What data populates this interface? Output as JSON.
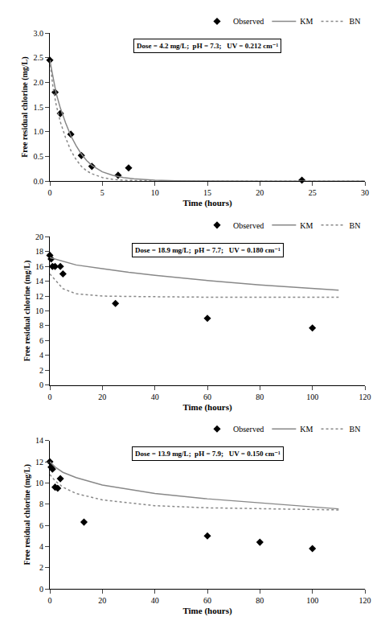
{
  "chart_data": [
    {
      "type": "line",
      "annotations": [
        "Dose = 4.2 mg/L;  pH = 7.3;   UV = 0.212 cm⁻¹"
      ],
      "xlabel": "Time (hours)",
      "ylabel": "Free residual chlorine (mg/L)",
      "xlim": [
        0,
        30
      ],
      "xticks": [
        0,
        5,
        10,
        15,
        20,
        25,
        30
      ],
      "ylim": [
        0,
        3.0
      ],
      "yticks": [
        {
          "value": 0.0,
          "label": "0.0"
        },
        0.5,
        {
          "value": 1.0,
          "label": "1.0"
        },
        1.5,
        {
          "value": 2.0,
          "label": "2.0"
        },
        2.5,
        {
          "value": 3.0,
          "label": "3.0"
        }
      ],
      "grid": false,
      "legend": "upper right",
      "series": [
        {
          "name": "Observed",
          "type": "scatter",
          "marker": "diamond",
          "color": "#000000",
          "x": [
            0,
            0.5,
            1,
            2,
            3,
            4,
            6.5,
            7.5,
            24
          ],
          "values": [
            2.45,
            1.8,
            1.37,
            0.95,
            0.52,
            0.3,
            0.12,
            0.27,
            0.02
          ]
        },
        {
          "name": "KM",
          "type": "line",
          "line_style": "solid",
          "color": "#888888",
          "x": [
            0,
            0.3,
            0.6,
            1,
            1.5,
            2,
            2.5,
            3,
            3.5,
            4,
            5,
            6,
            7,
            8,
            10,
            12,
            15,
            20,
            24,
            30
          ],
          "values": [
            2.45,
            2.1,
            1.78,
            1.48,
            1.18,
            0.92,
            0.72,
            0.55,
            0.42,
            0.32,
            0.19,
            0.12,
            0.075,
            0.048,
            0.02,
            0.009,
            0.003,
            0.001,
            0.0003,
            0.0001
          ]
        },
        {
          "name": "BN",
          "type": "line",
          "line_style": "dotted",
          "color": "#888888",
          "x": [
            0,
            0.3,
            0.6,
            1,
            1.5,
            2,
            2.5,
            3,
            3.5,
            4,
            5,
            6,
            7,
            8,
            10,
            12,
            15,
            20,
            24,
            30
          ],
          "values": [
            2.45,
            1.9,
            1.55,
            1.2,
            0.88,
            0.62,
            0.44,
            0.3,
            0.21,
            0.15,
            0.075,
            0.038,
            0.02,
            0.011,
            0.004,
            0.002,
            0.0007,
            0.0002,
            7e-05,
            2e-05
          ]
        }
      ]
    },
    {
      "type": "line",
      "annotations": [
        "Dose = 18.9 mg/L;  pH = 7.7;   UV = 0.180 cm⁻¹"
      ],
      "xlabel": "Time (hours)",
      "ylabel": "Free residual chlorine (mg/L)",
      "xlim": [
        0,
        120
      ],
      "xticks": [
        0,
        20,
        40,
        60,
        80,
        100,
        120
      ],
      "ylim": [
        0,
        20
      ],
      "yticks": [
        0,
        2,
        4,
        6,
        8,
        10,
        12,
        14,
        16,
        18,
        20
      ],
      "grid": false,
      "legend": "upper right",
      "series": [
        {
          "name": "Observed",
          "type": "scatter",
          "marker": "diamond",
          "color": "#000000",
          "x": [
            0,
            0.5,
            1,
            2,
            4,
            5,
            25,
            60,
            100
          ],
          "values": [
            17.5,
            17.0,
            16.0,
            16.0,
            16.0,
            15.0,
            11.0,
            9.0,
            7.7
          ]
        },
        {
          "name": "KM",
          "type": "line",
          "line_style": "solid",
          "color": "#888888",
          "x": [
            0,
            10,
            20,
            30,
            40,
            60,
            80,
            100,
            110
          ],
          "values": [
            17.2,
            16.2,
            15.7,
            15.2,
            14.8,
            14.1,
            13.5,
            13.0,
            12.8
          ]
        },
        {
          "name": "BN",
          "type": "line",
          "line_style": "dotted",
          "color": "#888888",
          "x": [
            0,
            5,
            10,
            20,
            30,
            40,
            60,
            80,
            100,
            110
          ],
          "values": [
            15.0,
            13.0,
            12.3,
            12.0,
            11.95,
            11.9,
            11.85,
            11.85,
            11.85,
            11.85
          ]
        }
      ]
    },
    {
      "type": "line",
      "annotations": [
        "Dose = 13.9 mg/L;  pH = 7.9;   UV = 0.150 cm⁻¹"
      ],
      "xlabel": "Time (hours)",
      "ylabel": "Free residual chlorine (mg/L)",
      "xlim": [
        0,
        120
      ],
      "xticks": [
        0,
        20,
        40,
        60,
        80,
        100,
        120
      ],
      "ylim": [
        0,
        14
      ],
      "yticks": [
        0,
        2,
        4,
        6,
        8,
        10,
        12,
        14
      ],
      "grid": false,
      "legend": "upper right",
      "series": [
        {
          "name": "Observed",
          "type": "scatter",
          "marker": "diamond",
          "color": "#000000",
          "x": [
            0,
            0.5,
            1,
            2,
            3,
            4,
            13,
            60,
            80,
            100
          ],
          "values": [
            12.0,
            11.5,
            11.3,
            9.6,
            9.5,
            10.4,
            6.3,
            5.0,
            4.4,
            3.8
          ]
        },
        {
          "name": "KM",
          "type": "line",
          "line_style": "solid",
          "color": "#888888",
          "x": [
            0,
            2,
            5,
            10,
            20,
            40,
            60,
            80,
            100,
            110
          ],
          "values": [
            12.0,
            11.5,
            11.0,
            10.5,
            9.8,
            9.0,
            8.5,
            8.1,
            7.7,
            7.55
          ]
        },
        {
          "name": "BN",
          "type": "line",
          "line_style": "dotted",
          "color": "#888888",
          "x": [
            0,
            2,
            5,
            10,
            20,
            40,
            60,
            80,
            100,
            110
          ],
          "values": [
            10.8,
            10.2,
            9.6,
            9.0,
            8.4,
            7.85,
            7.65,
            7.55,
            7.48,
            7.45
          ]
        }
      ]
    }
  ]
}
